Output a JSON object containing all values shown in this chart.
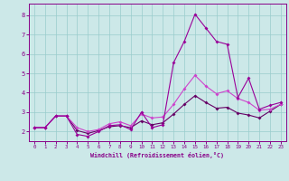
{
  "xlabel": "Windchill (Refroidissement éolien,°C)",
  "background_color": "#cce8e8",
  "grid_color": "#99cccc",
  "line_color1": "#990099",
  "line_color2": "#cc44cc",
  "line_color3": "#660066",
  "xlim": [
    -0.5,
    23.5
  ],
  "ylim": [
    1.5,
    8.6
  ],
  "x_ticks": [
    0,
    1,
    2,
    3,
    4,
    5,
    6,
    7,
    8,
    9,
    10,
    11,
    12,
    13,
    14,
    15,
    16,
    17,
    18,
    19,
    20,
    21,
    22,
    23
  ],
  "y_ticks": [
    2,
    3,
    4,
    5,
    6,
    7,
    8
  ],
  "series1_x": [
    0,
    1,
    2,
    3,
    4,
    5,
    6,
    7,
    8,
    9,
    10,
    11,
    12,
    13,
    14,
    15,
    16,
    17,
    18,
    19,
    20,
    21,
    22,
    23
  ],
  "series1_y": [
    2.2,
    2.2,
    2.8,
    2.8,
    1.85,
    1.75,
    2.0,
    2.3,
    2.35,
    2.1,
    3.0,
    2.2,
    2.35,
    5.55,
    6.65,
    8.05,
    7.35,
    6.65,
    6.5,
    3.75,
    4.75,
    3.15,
    3.35,
    3.5
  ],
  "series2_x": [
    0,
    1,
    2,
    3,
    4,
    5,
    6,
    7,
    8,
    9,
    10,
    11,
    12,
    13,
    14,
    15,
    16,
    17,
    18,
    19,
    20,
    21,
    22,
    23
  ],
  "series2_y": [
    2.2,
    2.2,
    2.8,
    2.8,
    2.2,
    2.0,
    2.1,
    2.4,
    2.5,
    2.3,
    2.9,
    2.7,
    2.75,
    3.4,
    4.2,
    4.9,
    4.35,
    3.95,
    4.1,
    3.7,
    3.5,
    3.1,
    3.15,
    3.4
  ],
  "series3_x": [
    0,
    1,
    2,
    3,
    4,
    5,
    6,
    7,
    8,
    9,
    10,
    11,
    12,
    13,
    14,
    15,
    16,
    17,
    18,
    19,
    20,
    21,
    22,
    23
  ],
  "series3_y": [
    2.2,
    2.2,
    2.8,
    2.8,
    2.05,
    1.9,
    2.05,
    2.25,
    2.3,
    2.2,
    2.55,
    2.35,
    2.45,
    2.9,
    3.4,
    3.85,
    3.5,
    3.2,
    3.25,
    2.95,
    2.85,
    2.7,
    3.05,
    3.4
  ]
}
